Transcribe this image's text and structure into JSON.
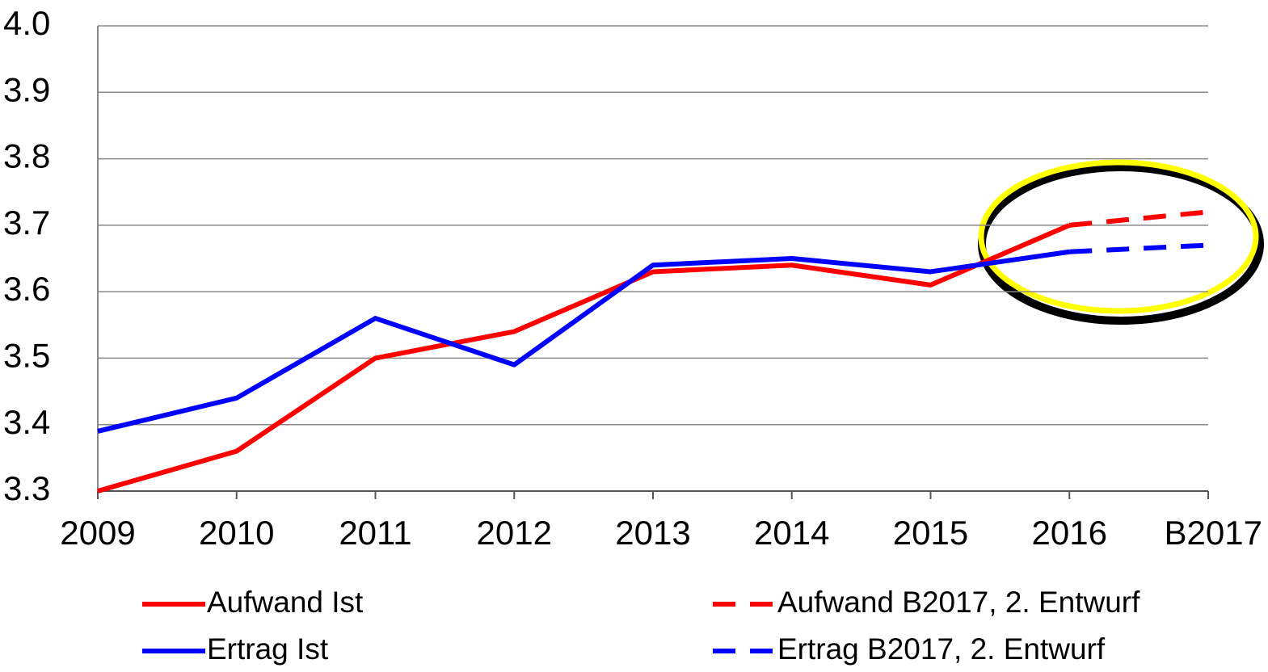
{
  "chart_data": {
    "type": "line",
    "categories": [
      "2009",
      "2010",
      "2011",
      "2012",
      "2013",
      "2014",
      "2015",
      "2016",
      "B2017"
    ],
    "series": [
      {
        "name": "Aufwand Ist",
        "color": "#ff0000",
        "line_style": "solid",
        "values": [
          3.3,
          3.36,
          3.5,
          3.54,
          3.63,
          3.64,
          3.61,
          3.7,
          null
        ]
      },
      {
        "name": "Ertrag Ist",
        "color": "#0000ff",
        "line_style": "solid",
        "values": [
          3.39,
          3.44,
          3.56,
          3.49,
          3.64,
          3.65,
          3.63,
          3.66,
          null
        ]
      },
      {
        "name": "Aufwand B2017, 2. Entwurf",
        "color": "#ff0000",
        "line_style": "dashed",
        "values": [
          null,
          null,
          null,
          null,
          null,
          null,
          null,
          3.7,
          3.72
        ]
      },
      {
        "name": "Ertrag B2017, 2. Entwurf",
        "color": "#0000ff",
        "line_style": "dashed",
        "values": [
          null,
          null,
          null,
          null,
          null,
          null,
          null,
          3.66,
          3.67
        ]
      }
    ],
    "ylim": [
      3.3,
      4.0
    ],
    "yticks": [
      3.3,
      3.4,
      3.5,
      3.6,
      3.7,
      3.8,
      3.9,
      {
        "value": 4,
        "label": "4.0"
      }
    ],
    "grid": true
  }
}
